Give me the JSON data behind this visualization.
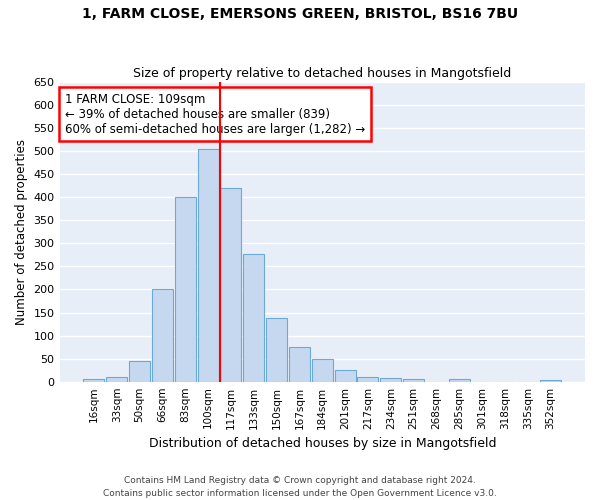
{
  "title1": "1, FARM CLOSE, EMERSONS GREEN, BRISTOL, BS16 7BU",
  "title2": "Size of property relative to detached houses in Mangotsfield",
  "xlabel": "Distribution of detached houses by size in Mangotsfield",
  "ylabel": "Number of detached properties",
  "categories": [
    "16sqm",
    "33sqm",
    "50sqm",
    "66sqm",
    "83sqm",
    "100sqm",
    "117sqm",
    "133sqm",
    "150sqm",
    "167sqm",
    "184sqm",
    "201sqm",
    "217sqm",
    "234sqm",
    "251sqm",
    "268sqm",
    "285sqm",
    "301sqm",
    "318sqm",
    "335sqm",
    "352sqm"
  ],
  "values": [
    5,
    10,
    45,
    200,
    400,
    505,
    420,
    278,
    138,
    75,
    50,
    25,
    10,
    7,
    5,
    0,
    5,
    0,
    0,
    0,
    3
  ],
  "bar_color": "#c5d8f0",
  "bar_edge_color": "#6aaad4",
  "vline_x": 5.5,
  "vline_color": "red",
  "annotation_text": "1 FARM CLOSE: 109sqm\n← 39% of detached houses are smaller (839)\n60% of semi-detached houses are larger (1,282) →",
  "annotation_box_color": "white",
  "annotation_box_edge_color": "red",
  "ylim": [
    0,
    650
  ],
  "yticks": [
    0,
    50,
    100,
    150,
    200,
    250,
    300,
    350,
    400,
    450,
    500,
    550,
    600,
    650
  ],
  "footnote1": "Contains HM Land Registry data © Crown copyright and database right 2024.",
  "footnote2": "Contains public sector information licensed under the Open Government Licence v3.0.",
  "bg_color": "#e8eef8",
  "grid_color": "white",
  "fig_bg": "white"
}
